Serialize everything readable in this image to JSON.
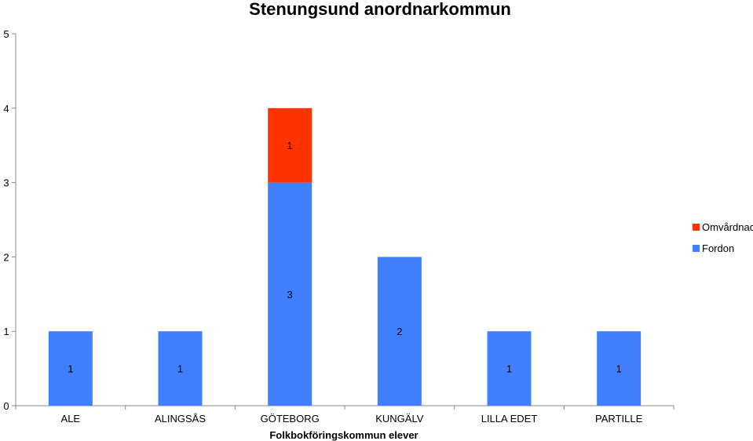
{
  "chart_data": {
    "type": "bar",
    "stacked": true,
    "title": "Stenungsund anordnarkommun",
    "xlabel": "Folkbokföringskommun elever",
    "ylabel": "",
    "ylim": [
      0,
      5
    ],
    "yticks": [
      0,
      1,
      2,
      3,
      4,
      5
    ],
    "grid": false,
    "legend_position": "right",
    "categories": [
      "ALE",
      "ALINGSÅS",
      "GÖTEBORG",
      "KUNGÄLV",
      "LILLA EDET",
      "PARTILLE"
    ],
    "series": [
      {
        "name": "Fordon",
        "color": "#4080ff",
        "values": [
          1,
          1,
          3,
          2,
          1,
          1
        ]
      },
      {
        "name": "Omvårdnad",
        "color": "#ff3300",
        "values": [
          0,
          0,
          1,
          0,
          0,
          0
        ]
      }
    ]
  }
}
